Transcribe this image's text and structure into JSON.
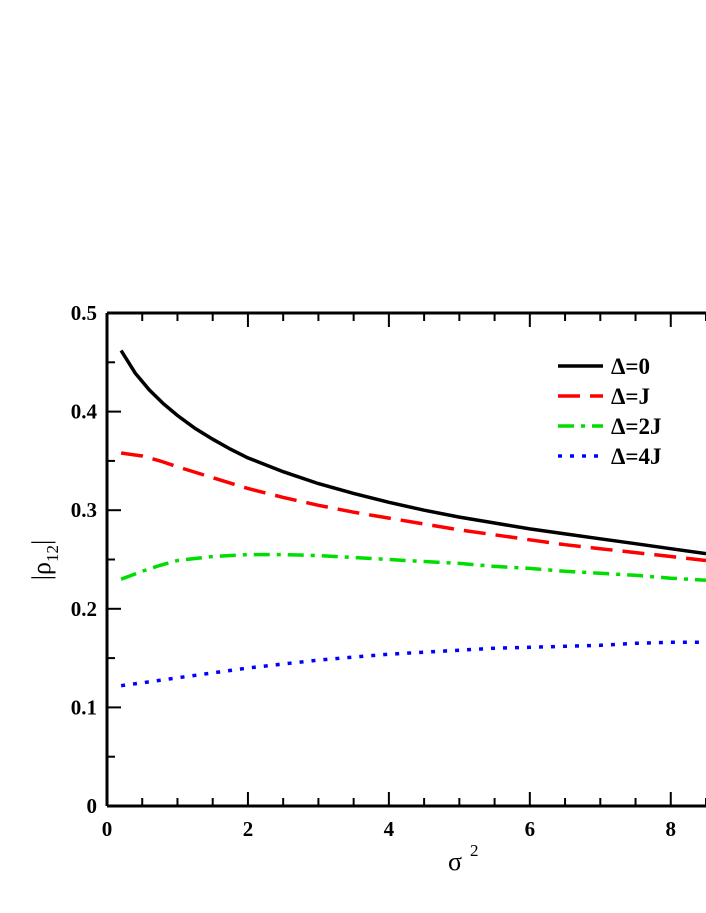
{
  "chart_data": {
    "type": "line",
    "xlabel": {
      "main": "σ",
      "sup": "2"
    },
    "ylabel": {
      "pre": "|ρ",
      "sub": "12",
      "post": "|"
    },
    "xlim": [
      0,
      8.5
    ],
    "ylim": [
      0,
      0.5
    ],
    "x_ticks": [
      "0",
      "2",
      "4",
      "6",
      "8"
    ],
    "y_ticks": [
      "0",
      "0.1",
      "0.2",
      "0.3",
      "0.4",
      "0.5"
    ],
    "grid": false,
    "legend_position": "top-right",
    "series": [
      {
        "name": "Δ=0",
        "color": "#000000",
        "style": "solid",
        "x": [
          0.2,
          0.4,
          0.6,
          0.8,
          1.0,
          1.25,
          1.5,
          1.75,
          2.0,
          2.5,
          3.0,
          3.5,
          4.0,
          4.5,
          5.0,
          5.5,
          6.0,
          6.5,
          7.0,
          7.5,
          8.0,
          8.5
        ],
        "y": [
          0.462,
          0.439,
          0.422,
          0.408,
          0.396,
          0.383,
          0.372,
          0.362,
          0.353,
          0.339,
          0.327,
          0.317,
          0.308,
          0.3,
          0.293,
          0.287,
          0.281,
          0.276,
          0.271,
          0.266,
          0.261,
          0.256
        ]
      },
      {
        "name": "Δ=J",
        "color": "#ff0000",
        "style": "dashed",
        "x": [
          0.2,
          0.5,
          0.75,
          1.0,
          1.5,
          2.0,
          2.5,
          3.0,
          3.5,
          4.0,
          4.5,
          5.0,
          5.5,
          6.0,
          6.5,
          7.0,
          7.5,
          8.0,
          8.5
        ],
        "y": [
          0.358,
          0.355,
          0.35,
          0.344,
          0.333,
          0.322,
          0.313,
          0.305,
          0.298,
          0.292,
          0.286,
          0.28,
          0.275,
          0.27,
          0.265,
          0.261,
          0.257,
          0.253,
          0.249
        ]
      },
      {
        "name": "Δ=2J",
        "color": "#00dd00",
        "style": "dash-dot",
        "x": [
          0.2,
          0.5,
          0.75,
          1.0,
          1.5,
          2.0,
          2.5,
          3.0,
          3.5,
          4.0,
          4.5,
          5.0,
          5.5,
          6.0,
          6.5,
          7.0,
          7.5,
          8.0,
          8.5
        ],
        "y": [
          0.23,
          0.238,
          0.244,
          0.249,
          0.253,
          0.255,
          0.255,
          0.254,
          0.252,
          0.25,
          0.248,
          0.246,
          0.243,
          0.241,
          0.238,
          0.236,
          0.234,
          0.231,
          0.229
        ]
      },
      {
        "name": "Δ=4J",
        "color": "#0000ff",
        "style": "dotted",
        "x": [
          0.2,
          0.5,
          1.0,
          1.5,
          2.0,
          2.5,
          3.0,
          3.5,
          4.0,
          4.5,
          5.0,
          5.5,
          6.0,
          6.5,
          7.0,
          7.5,
          8.0,
          8.5
        ],
        "y": [
          0.122,
          0.125,
          0.13,
          0.135,
          0.14,
          0.144,
          0.148,
          0.151,
          0.154,
          0.156,
          0.158,
          0.16,
          0.161,
          0.162,
          0.163,
          0.165,
          0.166,
          0.166
        ]
      }
    ]
  }
}
